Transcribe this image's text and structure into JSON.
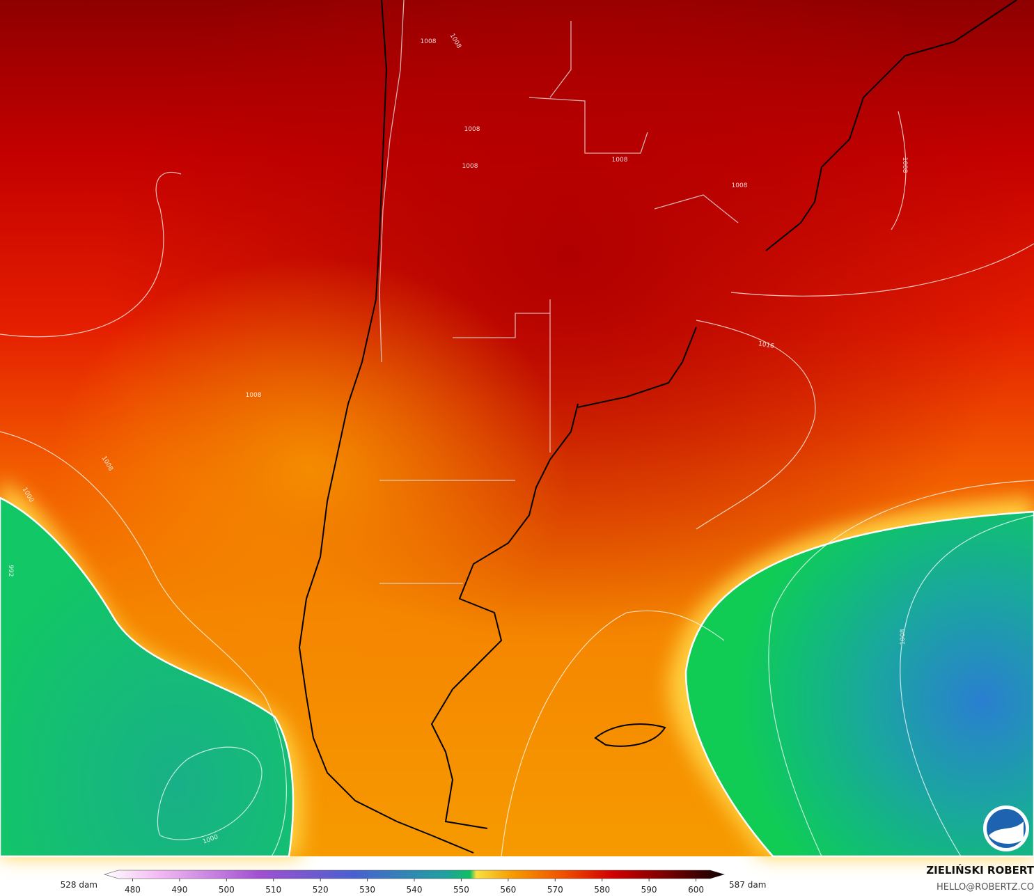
{
  "map": {
    "isobar_labels": [
      1008,
      1008,
      1008,
      1008,
      1008,
      1008,
      1008,
      1008,
      1008,
      1008,
      1016,
      1000,
      1000,
      992
    ],
    "colorbar": {
      "lim": [
        474,
        606
      ],
      "ticks": [
        480,
        490,
        500,
        510,
        520,
        530,
        540,
        550,
        560,
        570,
        580,
        590,
        600
      ],
      "left_label": "528 dam",
      "right_label": "587 dam"
    },
    "credit": {
      "name": "ZIELIŃSKI ROBERT",
      "email": "HELLO@ROBERTZ.CO"
    }
  }
}
